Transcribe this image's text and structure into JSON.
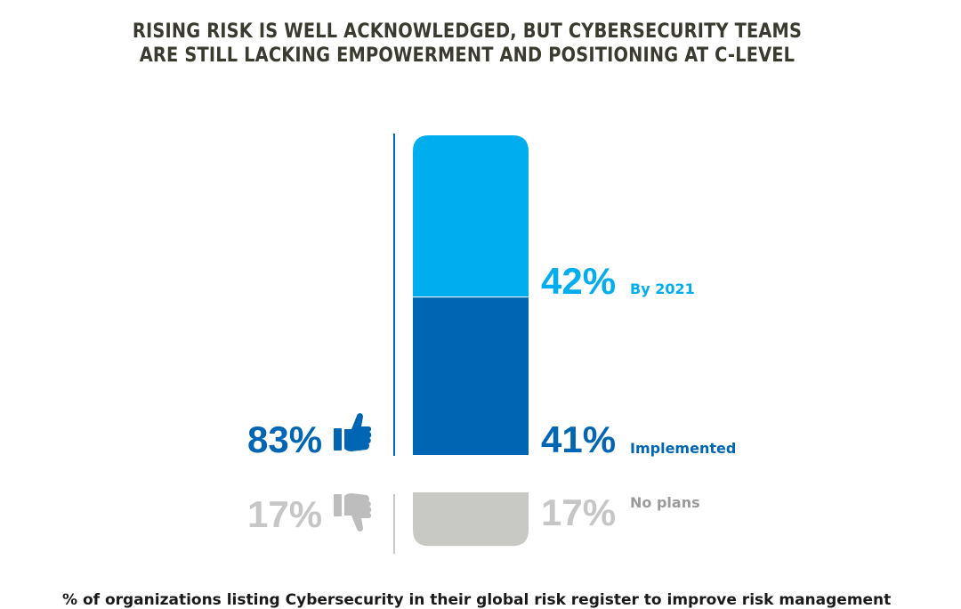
{
  "title_lines": [
    "RISING RISK IS WELL ACKNOWLEDGED, BUT CYBERSECURITY TEAMS",
    "ARE STILL LACKING EMPOWERMENT AND POSITIONING AT C-LEVEL"
  ],
  "footer_text": "% of organizations listing Cybersecurity in their global risk register to improve risk management",
  "colors": {
    "light_blue": "#00aeef",
    "dark_blue": "#0066b3",
    "gray_bar": "#c8c8c4",
    "gray_text": "#c6c6c6",
    "title": "#3a3a30"
  },
  "chart_data": {
    "type": "bar",
    "stacked": true,
    "segments": [
      {
        "name": "By 2021",
        "value": 42,
        "value_label": "42%",
        "color": "#00aeef"
      },
      {
        "name": "Implemented",
        "value": 41,
        "value_label": "41%",
        "color": "#0066b3"
      },
      {
        "name": "No plans",
        "value": 17,
        "value_label": "17%",
        "color": "#c8c8c4"
      }
    ],
    "summary": [
      {
        "value": 83,
        "label": "83%",
        "icon": "thumbs-up-icon",
        "color": "#0066b3"
      },
      {
        "value": 17,
        "label": "17%",
        "icon": "thumbs-down-icon",
        "color": "#c6c6c6"
      }
    ]
  }
}
